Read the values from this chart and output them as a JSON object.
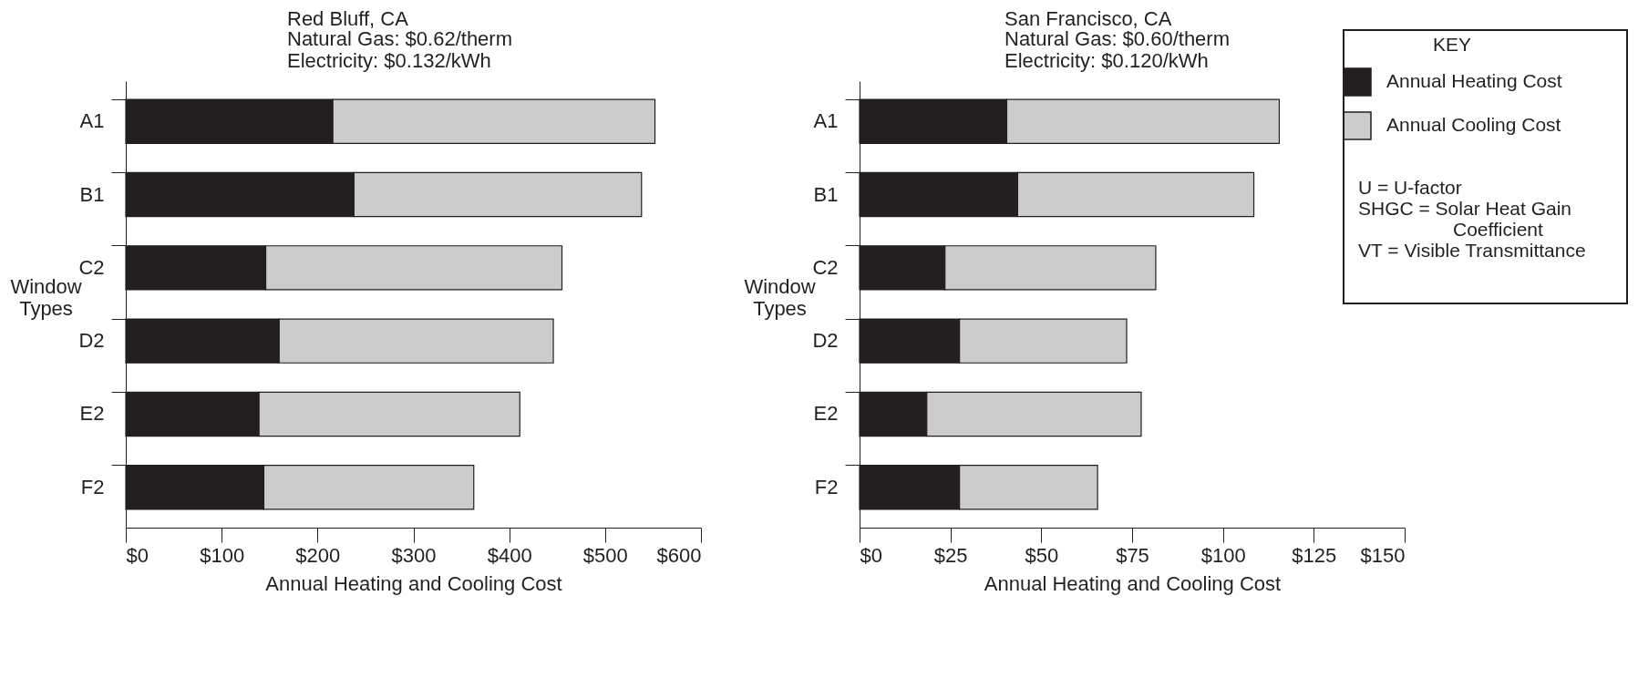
{
  "chart_data": [
    {
      "type": "bar",
      "orientation": "horizontal",
      "stacked": true,
      "title": "Red Bluff, CA",
      "subtitle": "Natural Gas: $0.62/therm\nElectricity: $0.132/kWh",
      "xlabel": "Annual Heating and Cooling Cost",
      "ylabel": "Window Types",
      "categories": [
        "A1",
        "B1",
        "C2",
        "D2",
        "E2",
        "F2"
      ],
      "series": [
        {
          "name": "Annual Heating Cost",
          "color": "#231f20",
          "values": [
            216,
            238,
            146,
            160,
            139,
            144
          ]
        },
        {
          "name": "Annual Cooling Cost",
          "color": "#cccccc",
          "values": [
            336,
            300,
            309,
            286,
            272,
            219
          ]
        }
      ],
      "xlim": [
        0,
        600
      ],
      "xticks": [
        {
          "value": 0,
          "label": "$0"
        },
        {
          "value": 100,
          "label": "$100"
        },
        {
          "value": 200,
          "label": "$200"
        },
        {
          "value": 300,
          "label": "$300"
        },
        {
          "value": 400,
          "label": "$400"
        },
        {
          "value": 500,
          "label": "$500"
        },
        {
          "value": 600,
          "label": "$600"
        }
      ],
      "grid": false,
      "legend": "top right",
      "legend_title": "KEY"
    },
    {
      "type": "bar",
      "orientation": "horizontal",
      "stacked": true,
      "title": "San Francisco, CA",
      "subtitle": "Natural Gas: $0.60/therm\nElectricity: $0.120/kWh",
      "xlabel": "Annual Heating and Cooling Cost",
      "ylabel": "Window Types",
      "categories": [
        "A1",
        "B1",
        "C2",
        "D2",
        "E2",
        "F2"
      ],
      "series": [
        {
          "name": "Annual Heating Cost",
          "color": "#231f20",
          "values": [
            40.5,
            43.5,
            23.5,
            27.5,
            18.5,
            27.5
          ]
        },
        {
          "name": "Annual Cooling Cost",
          "color": "#cccccc",
          "values": [
            75,
            65,
            58,
            46,
            59,
            38
          ]
        }
      ],
      "xlim": [
        0,
        150
      ],
      "xticks": [
        {
          "value": 0,
          "label": "$0"
        },
        {
          "value": 25,
          "label": "$25"
        },
        {
          "value": 50,
          "label": "$50"
        },
        {
          "value": 75,
          "label": "$75"
        },
        {
          "value": 100,
          "label": "$100"
        },
        {
          "value": 125,
          "label": "$125"
        },
        {
          "value": 150,
          "label": "$150"
        }
      ],
      "grid": false,
      "legend": "top right",
      "annotations": [
        "U = U-factor",
        "SHGC = Solar Heat Gain Coefficient",
        "VT = Visible Transmittance"
      ]
    }
  ]
}
